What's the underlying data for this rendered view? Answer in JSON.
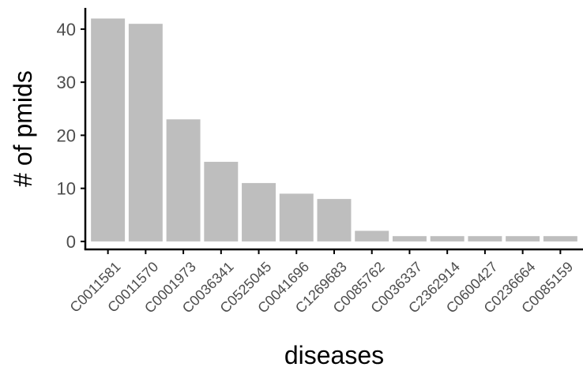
{
  "chart_data": {
    "type": "bar",
    "title": "",
    "xlabel": "diseases",
    "ylabel": "# of pmids",
    "categories": [
      "C0011581",
      "C0011570",
      "C0001973",
      "C0036341",
      "C0525045",
      "C0041696",
      "C1269683",
      "C0085762",
      "C0036337",
      "C2362914",
      "C0600427",
      "C0236664",
      "C0085159"
    ],
    "values": [
      42,
      41,
      23,
      15,
      11,
      9,
      8,
      2,
      1,
      1,
      1,
      1,
      1
    ],
    "yticks": [
      0,
      10,
      20,
      30,
      40
    ],
    "ylim": [
      -1.5,
      44
    ],
    "grid": false,
    "legend": "none",
    "colors": {
      "bar": "#bebebe",
      "axis": "#000000"
    }
  }
}
